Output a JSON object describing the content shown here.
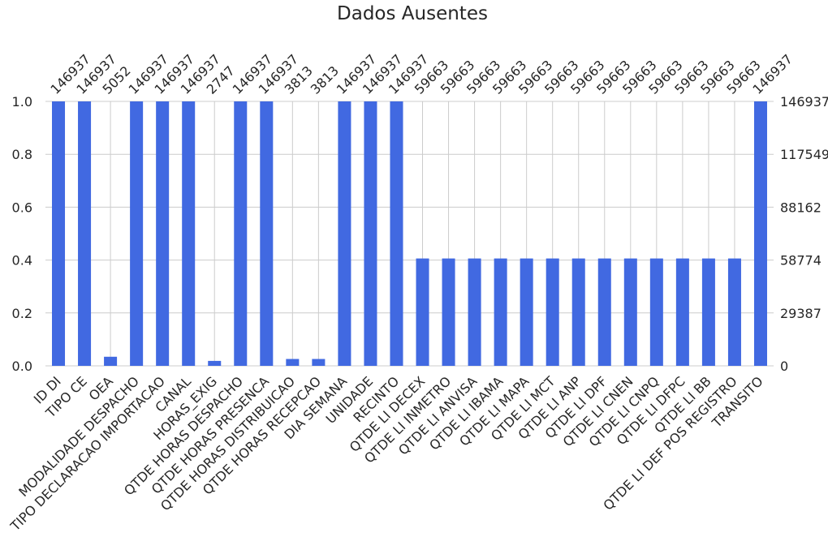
{
  "chart_data": {
    "type": "bar",
    "title": "Dados Ausentes",
    "xlabel": "",
    "ylabel": "",
    "ylim": [
      0,
      1
    ],
    "grid": true,
    "bar_color": "#4169e1",
    "total_rows": 146937,
    "left_axis_ticks": [
      "0.0",
      "0.2",
      "0.4",
      "0.6",
      "0.8",
      "1.0"
    ],
    "right_axis_ticks": [
      "0",
      "29387",
      "58774",
      "88162",
      "117549",
      "146937"
    ],
    "categories": [
      "ID DI",
      "TIPO CE",
      "OEA",
      "MODALIDADE DESPACHO",
      "TIPO DECLARACAO IMPORTACAO",
      "CANAL",
      "HORAS_EXIG",
      "QTDE HORAS DESPACHO",
      "QTDE HORAS PRESENCA",
      "QTDE HORAS DISTRIBUICAO",
      "QTDE HORAS RECEPCAO",
      "DIA SEMANA",
      "UNIDADE",
      "RECINTO",
      "QTDE LI DECEX",
      "QTDE LI INMETRO",
      "QTDE LI ANVISA",
      "QTDE LI IBAMA",
      "QTDE LI MAPA",
      "QTDE LI MCT",
      "QTDE LI ANP",
      "QTDE LI DPF",
      "QTDE LI CNEN",
      "QTDE LI CNPQ",
      "QTDE LI DFPC",
      "QTDE LI BB",
      "QTDE LI DEF POS REGISTRO",
      "TRANSITO"
    ],
    "counts": [
      146937,
      146937,
      5052,
      146937,
      146937,
      146937,
      2747,
      146937,
      146937,
      3813,
      3813,
      146937,
      146937,
      146937,
      59663,
      59663,
      59663,
      59663,
      59663,
      59663,
      59663,
      59663,
      59663,
      59663,
      59663,
      59663,
      59663,
      146937
    ],
    "count_labels": [
      "146937",
      "146937",
      "5052",
      "146937",
      "146937",
      "146937",
      "2747",
      "146937",
      "146937",
      "3813",
      "3813",
      "146937",
      "146937",
      "146937",
      "59663",
      "59663",
      "59663",
      "59663",
      "59663",
      "59663",
      "59663",
      "59663",
      "59663",
      "59663",
      "59663",
      "59663",
      "59663",
      "146937"
    ]
  }
}
